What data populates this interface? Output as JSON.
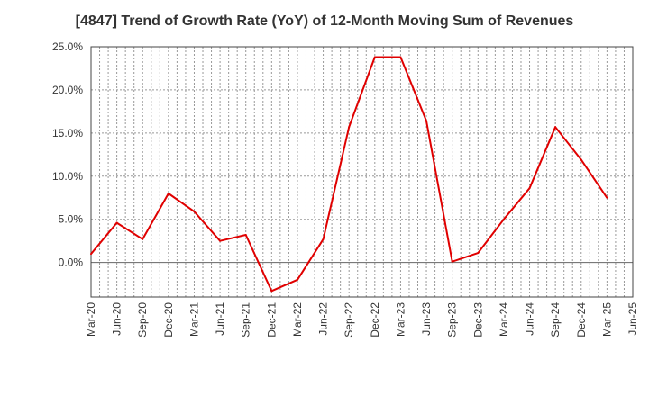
{
  "chart_data": {
    "type": "line",
    "title": "[4847]  Trend of Growth Rate (YoY) of 12-Month Moving Sum of Revenues",
    "xlabel": "",
    "ylabel": "",
    "ylim": [
      -4,
      25
    ],
    "y_ticks": [
      "25.0%",
      "20.0%",
      "15.0%",
      "10.0%",
      "5.0%",
      "0.0%"
    ],
    "y_tick_values": [
      25,
      20,
      15,
      10,
      5,
      0
    ],
    "x_tick_labels": [
      "Mar-20",
      "Jun-20",
      "Sep-20",
      "Dec-20",
      "Mar-21",
      "Jun-21",
      "Sep-21",
      "Dec-21",
      "Mar-22",
      "Jun-22",
      "Sep-22",
      "Dec-22",
      "Mar-23",
      "Jun-23",
      "Sep-23",
      "Dec-23",
      "Mar-24",
      "Jun-24",
      "Sep-24",
      "Dec-24",
      "Mar-25",
      "Jun-25"
    ],
    "grid": true,
    "legend": "none",
    "series": [
      {
        "color": "#e00000",
        "x": [
          "Mar-20",
          "Jun-20",
          "Sep-20",
          "Dec-20",
          "Mar-21",
          "Jun-21",
          "Sep-21",
          "Dec-21",
          "Mar-22",
          "Jun-22",
          "Sep-22",
          "Dec-22",
          "Mar-23",
          "Jun-23",
          "Sep-23",
          "Dec-23",
          "Mar-24",
          "Jun-24",
          "Sep-24",
          "Dec-24",
          "Mar-25"
        ],
        "values": [
          1.0,
          4.6,
          2.7,
          8.0,
          5.9,
          2.5,
          3.2,
          -3.3,
          -2.0,
          2.7,
          15.7,
          23.8,
          23.8,
          16.4,
          0.1,
          1.1,
          5.0,
          8.6,
          15.7,
          11.9,
          7.5
        ]
      }
    ]
  }
}
